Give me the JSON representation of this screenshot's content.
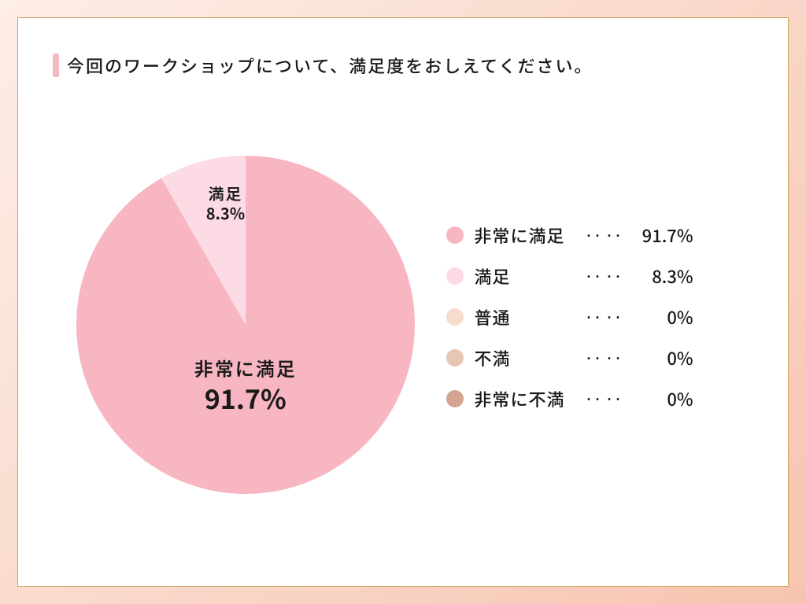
{
  "frame": {
    "gradient_from": "#fdeee6",
    "gradient_mid": "#f9d7c8",
    "gradient_to": "#f7c4b0",
    "inner_border_color": "#caa15a",
    "inner_background": "#ffffff"
  },
  "title": {
    "accent_color": "#f4bac4",
    "text": "今回のワークショップについて、満足度をおしえてください。",
    "fontsize": 22,
    "color": "#1a1a1a"
  },
  "chart": {
    "type": "pie",
    "radius": 215,
    "start_angle_deg": 0,
    "background_color": "#ffffff",
    "slices": [
      {
        "key": "very_satisfied",
        "label": "非常に満足",
        "percent": 91.7,
        "color": "#f7b6c2",
        "percent_text": "91.7%"
      },
      {
        "key": "satisfied",
        "label": "満足",
        "percent": 8.3,
        "color": "#fcdbe4",
        "percent_text": "8.3%"
      },
      {
        "key": "neutral",
        "label": "普通",
        "percent": 0,
        "color": "#f6dccc",
        "percent_text": "0%"
      },
      {
        "key": "dissatisfied",
        "label": "不満",
        "percent": 0,
        "color": "#e7c6b6",
        "percent_text": "0%"
      },
      {
        "key": "very_dissatisfied",
        "label": "非常に不満",
        "percent": 0,
        "color": "#d4a391",
        "percent_text": "0%"
      }
    ],
    "label_main": {
      "label_fontsize": 24,
      "pct_fontsize": 34
    },
    "label_minor": {
      "label_fontsize": 20,
      "pct_fontsize": 20
    }
  },
  "legend": {
    "dots": "‥‥",
    "label_fontsize": 22,
    "swatch_radius": 11
  }
}
